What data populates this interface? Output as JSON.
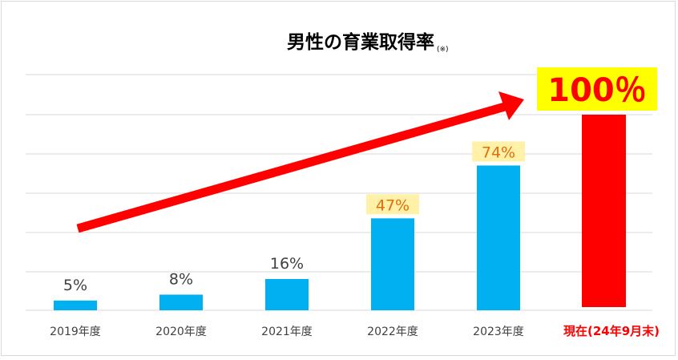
{
  "chart_data": {
    "type": "bar",
    "title": "男性の育業取得率",
    "title_note": "(※)",
    "categories": [
      "2019年度",
      "2020年度",
      "2021年度",
      "2022年度",
      "2023年度",
      "現在(24年9月末)"
    ],
    "values": [
      5,
      8,
      16,
      47,
      74,
      100
    ],
    "data_labels": [
      "5%",
      "8%",
      "16%",
      "47%",
      "74%",
      "100％"
    ],
    "ylim": [
      0,
      100
    ],
    "grid": true,
    "colors": {
      "bar": "#00b0f0",
      "highlight_bar": "#ff0000",
      "highlight_label_bg": "#ffff00",
      "label_highlight_bg": "#fff2a8",
      "label_highlight_text": "#e46c0a",
      "plain_label_text": "#404040",
      "axis_text": "#404040",
      "arrow": "#ff0000",
      "grid": "#d9d9d9"
    }
  }
}
